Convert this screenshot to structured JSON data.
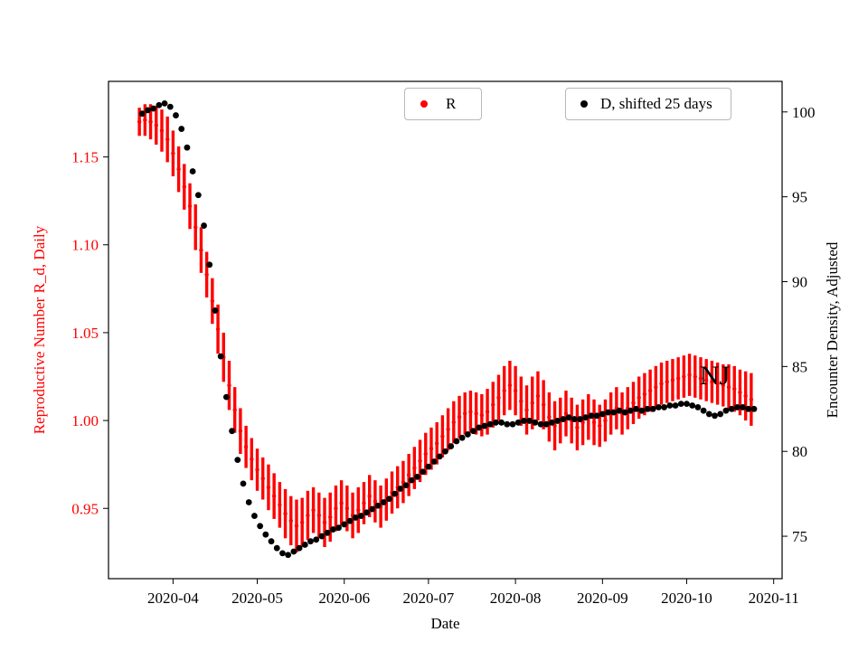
{
  "figure": {
    "background": "#ffffff",
    "accent_red": "#ff0000",
    "accent_black": "#000000"
  },
  "chart_data": {
    "type": "scatter",
    "title": "",
    "xlabel": "Date",
    "ylabel_left": "Reproductive Number R_d, Daily",
    "ylabel_right": "Encounter Density, Adjusted",
    "x_ticks": [
      "2020-04",
      "2020-05",
      "2020-06",
      "2020-07",
      "2020-08",
      "2020-09",
      "2020-10",
      "2020-11"
    ],
    "xlim": [
      "2020-03-09",
      "2020-11-04"
    ],
    "ylim_left": [
      0.91,
      1.193
    ],
    "ylim_right": [
      72.5,
      101.8
    ],
    "yticks_left": [
      0.95,
      1.0,
      1.05,
      1.1,
      1.15
    ],
    "yticks_right": [
      75,
      80,
      85,
      90,
      95,
      100
    ],
    "legend_position": "upper center",
    "grid": false,
    "series": [
      {
        "name": "R",
        "axis": "left",
        "type": "errorbar",
        "color": "#ff0000",
        "start": "2020-03-20",
        "step_days": 2,
        "values": [
          1.17,
          1.171,
          1.17,
          1.168,
          1.165,
          1.16,
          1.152,
          1.143,
          1.133,
          1.122,
          1.11,
          1.097,
          1.083,
          1.068,
          1.052,
          1.036,
          1.02,
          1.006,
          0.994,
          0.985,
          0.978,
          0.972,
          0.967,
          0.962,
          0.957,
          0.952,
          0.947,
          0.943,
          0.94,
          0.942,
          0.946,
          0.949,
          0.946,
          0.942,
          0.945,
          0.95,
          0.953,
          0.95,
          0.946,
          0.949,
          0.953,
          0.957,
          0.954,
          0.951,
          0.955,
          0.959,
          0.962,
          0.965,
          0.969,
          0.973,
          0.977,
          0.981,
          0.984,
          0.987,
          0.991,
          0.995,
          0.999,
          1.002,
          1.004,
          1.005,
          1.004,
          1.003,
          1.005,
          1.009,
          1.013,
          1.017,
          1.02,
          1.017,
          1.011,
          1.006,
          1.01,
          1.014,
          1.009,
          1.002,
          0.997,
          1.0,
          1.004,
          1.0,
          0.996,
          0.999,
          1.002,
          0.999,
          0.997,
          1.0,
          1.004,
          1.007,
          1.004,
          1.007,
          1.01,
          1.013,
          1.015,
          1.017,
          1.019,
          1.021,
          1.022,
          1.023,
          1.024,
          1.025,
          1.026,
          1.025,
          1.024,
          1.023,
          1.022,
          1.021,
          1.02,
          1.019,
          1.018,
          1.016,
          1.014,
          1.012
        ],
        "yerr": [
          0.008,
          0.009,
          0.01,
          0.011,
          0.012,
          0.013,
          0.013,
          0.013,
          0.013,
          0.013,
          0.013,
          0.013,
          0.013,
          0.013,
          0.014,
          0.014,
          0.014,
          0.013,
          0.013,
          0.012,
          0.012,
          0.012,
          0.012,
          0.013,
          0.013,
          0.013,
          0.014,
          0.014,
          0.015,
          0.014,
          0.014,
          0.013,
          0.013,
          0.014,
          0.014,
          0.013,
          0.013,
          0.013,
          0.013,
          0.013,
          0.012,
          0.012,
          0.012,
          0.012,
          0.012,
          0.012,
          0.012,
          0.012,
          0.012,
          0.012,
          0.012,
          0.012,
          0.012,
          0.012,
          0.012,
          0.012,
          0.012,
          0.012,
          0.012,
          0.012,
          0.012,
          0.012,
          0.013,
          0.013,
          0.013,
          0.014,
          0.014,
          0.014,
          0.014,
          0.014,
          0.015,
          0.014,
          0.014,
          0.014,
          0.014,
          0.013,
          0.013,
          0.013,
          0.013,
          0.013,
          0.013,
          0.013,
          0.012,
          0.012,
          0.012,
          0.012,
          0.012,
          0.012,
          0.012,
          0.012,
          0.012,
          0.012,
          0.012,
          0.012,
          0.012,
          0.012,
          0.012,
          0.012,
          0.012,
          0.012,
          0.012,
          0.012,
          0.012,
          0.012,
          0.012,
          0.013,
          0.013,
          0.013,
          0.014,
          0.015
        ]
      },
      {
        "name": "D, shifted 25 days",
        "axis": "right",
        "type": "scatter",
        "color": "#000000",
        "start": "2020-03-21",
        "step_days": 2,
        "values": [
          99.9,
          100.1,
          100.2,
          100.4,
          100.5,
          100.3,
          99.8,
          99.0,
          97.9,
          96.5,
          95.1,
          93.3,
          91.0,
          88.3,
          85.6,
          83.2,
          81.2,
          79.5,
          78.1,
          77.0,
          76.2,
          75.6,
          75.1,
          74.7,
          74.3,
          74.0,
          73.9,
          74.1,
          74.3,
          74.5,
          74.7,
          74.8,
          75.0,
          75.2,
          75.4,
          75.5,
          75.7,
          75.9,
          76.1,
          76.2,
          76.4,
          76.6,
          76.8,
          77.0,
          77.2,
          77.5,
          77.8,
          78.0,
          78.3,
          78.5,
          78.8,
          79.1,
          79.4,
          79.7,
          80.0,
          80.3,
          80.6,
          80.8,
          81.0,
          81.2,
          81.4,
          81.5,
          81.6,
          81.7,
          81.7,
          81.6,
          81.6,
          81.7,
          81.8,
          81.8,
          81.7,
          81.6,
          81.6,
          81.7,
          81.8,
          81.9,
          82.0,
          81.9,
          81.9,
          82.0,
          82.1,
          82.1,
          82.2,
          82.3,
          82.3,
          82.4,
          82.3,
          82.4,
          82.5,
          82.4,
          82.5,
          82.5,
          82.6,
          82.6,
          82.7,
          82.7,
          82.8,
          82.8,
          82.7,
          82.6,
          82.4,
          82.2,
          82.1,
          82.2,
          82.4,
          82.5,
          82.6,
          82.6,
          82.5,
          82.5
        ]
      }
    ],
    "annotations": [
      {
        "text": "NJ",
        "x": "2020-10-11",
        "y": 1.026,
        "axis": "left"
      }
    ]
  }
}
